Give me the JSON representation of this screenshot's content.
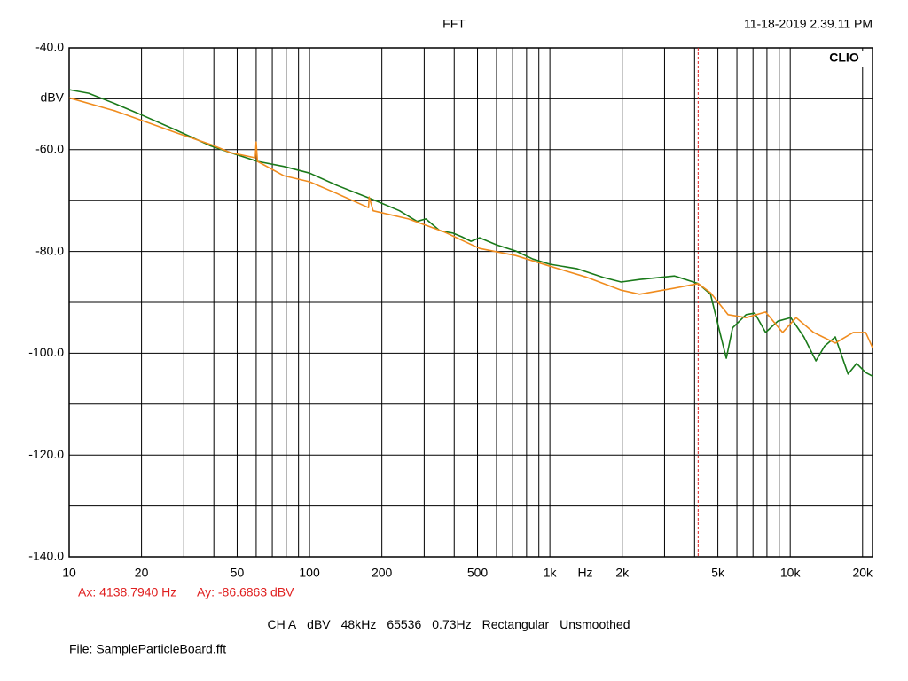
{
  "chart_data": {
    "type": "line",
    "title": "FFT",
    "timestamp": "11-18-2019 2.39.11 PM",
    "brand": "CLIO",
    "ylabel": "dBV",
    "xlabel": "Hz",
    "log_x": true,
    "grid": true,
    "xlim": [
      10,
      22000
    ],
    "ylim": [
      -140,
      -40
    ],
    "xticks": [
      10,
      20,
      50,
      100,
      200,
      500,
      {
        "value": 1000,
        "label": "1k"
      },
      {
        "value": 2000,
        "label": "2k"
      },
      {
        "value": 5000,
        "label": "5k"
      },
      {
        "value": 10000,
        "label": "10k"
      },
      {
        "value": 20000,
        "label": "20k"
      }
    ],
    "xgrid_minor": [
      30,
      40,
      60,
      70,
      80,
      90,
      300,
      400,
      600,
      700,
      800,
      900,
      3000,
      4000,
      6000,
      7000,
      8000,
      9000
    ],
    "yticks": [
      {
        "value": -40,
        "label": "-40.0"
      },
      {
        "value": -60,
        "label": "-60.0"
      },
      {
        "value": -80,
        "label": "-80.0"
      },
      {
        "value": -100,
        "label": "-100.0"
      },
      {
        "value": -120,
        "label": "-120.0"
      },
      {
        "value": -140,
        "label": "-140.0"
      }
    ],
    "ygrid_minor": [
      -50,
      -70,
      -90,
      -110,
      -130
    ],
    "cursor": {
      "x": 4138.794,
      "y": -86.6863,
      "x_label": "Ax: 4138.7940 Hz",
      "y_label": "Ay: -86.6863 dBV",
      "color": "#e02020"
    },
    "settings": [
      "CH A",
      "dBV",
      "48kHz",
      "65536",
      "0.73Hz",
      "Rectangular",
      "Unsmoothed"
    ],
    "file": "File: SampleParticleBoard.fft",
    "series": [
      {
        "color": "#1a7a1a",
        "x": [
          10,
          12.05,
          15.6,
          20.1,
          28,
          39,
          47,
          60.7,
          78,
          100,
          130,
          184,
          237,
          280,
          305,
          348,
          395,
          430,
          470,
          510,
          600,
          720,
          850,
          1000,
          1300,
          1670,
          1980,
          2360,
          3300,
          4140,
          4660,
          5150,
          5420,
          5760,
          6550,
          7120,
          7900,
          8880,
          10050,
          11400,
          12800,
          13900,
          15400,
          17400,
          18900,
          20600,
          22000
        ],
        "values": [
          -48.2,
          -48.9,
          -51,
          -53.2,
          -56.2,
          -59.3,
          -60.6,
          -62.3,
          -63.3,
          -64.6,
          -67,
          -69.8,
          -72,
          -74.1,
          -73.6,
          -75.9,
          -76.4,
          -77.1,
          -78,
          -77.3,
          -78.7,
          -79.9,
          -81.5,
          -82.5,
          -83.4,
          -85.1,
          -86,
          -85.5,
          -84.8,
          -86.3,
          -88.4,
          -96.8,
          -101,
          -95,
          -92.4,
          -92.1,
          -95.9,
          -93.7,
          -93,
          -96.8,
          -101.5,
          -98.6,
          -96.8,
          -104.1,
          -102,
          -103.8,
          -104.5
        ]
      },
      {
        "color": "#f08c1e",
        "x": [
          10,
          15.6,
          28,
          39,
          47,
          59.5,
          60,
          60.7,
          78,
          100,
          130,
          176,
          177,
          184,
          258,
          365,
          510,
          720,
          1000,
          1410,
          1980,
          2360,
          3300,
          4140,
          4660,
          5510,
          6550,
          7900,
          9300,
          10580,
          12500,
          15400,
          18300,
          20600,
          22000
        ],
        "values": [
          -49.8,
          -52.4,
          -56.7,
          -59,
          -60.6,
          -61.6,
          -58.5,
          -62.3,
          -65.1,
          -66.3,
          -68.6,
          -71.4,
          -69.3,
          -72,
          -73.6,
          -76.2,
          -79.4,
          -80.8,
          -82.9,
          -85,
          -87.6,
          -88.4,
          -87.2,
          -86.3,
          -88.1,
          -92.4,
          -93,
          -91.9,
          -95.9,
          -93,
          -95.9,
          -98,
          -95.9,
          -95.9,
          -98.9
        ]
      }
    ]
  }
}
